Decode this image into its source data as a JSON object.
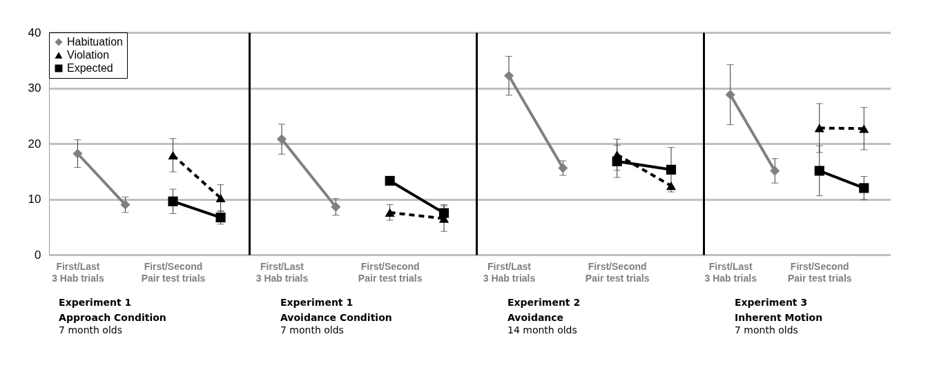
{
  "chart_data": [
    {
      "type": "line",
      "title": "Experiment 1\nApproach Condition",
      "subtitle": "7 month olds",
      "categories": [
        "First/Last\n3 Hab trials",
        null,
        "First/Second\nPair test trials",
        null
      ],
      "ylim": [
        0,
        40
      ],
      "yticks": [
        0,
        10,
        20,
        30,
        40
      ],
      "grid": "y",
      "legend": "top left",
      "series": [
        {
          "name": "Habituation",
          "color": "#808080",
          "marker": "diamond",
          "line_style": "solid",
          "values": [
            18.2,
            9.0,
            null,
            null
          ],
          "errors": [
            2.5,
            1.4,
            null,
            null
          ]
        },
        {
          "name": "Violation",
          "color": "#000000",
          "marker": "triangle",
          "line_style": "dashed",
          "values": [
            null,
            null,
            17.9,
            10.2
          ],
          "errors": [
            null,
            null,
            3.0,
            2.4
          ]
        },
        {
          "name": "Expected",
          "color": "#000000",
          "marker": "square",
          "line_style": "solid",
          "values": [
            null,
            null,
            9.6,
            6.7
          ],
          "errors": [
            null,
            null,
            2.2,
            1.2
          ]
        }
      ]
    },
    {
      "type": "line",
      "title": "Experiment 1\nAvoidance Condition",
      "subtitle": "7 month olds",
      "categories": [
        "First/Last\n3 Hab trials",
        null,
        "First/Second\nPair test trials",
        null
      ],
      "ylim": [
        0,
        40
      ],
      "yticks": [
        0,
        10,
        20,
        30,
        40
      ],
      "grid": "y",
      "tick_labels": "x",
      "series": [
        {
          "color": "#808080",
          "marker": "diamond",
          "line_style": "solid",
          "values": [
            20.8,
            8.6,
            null,
            null
          ],
          "errors": [
            2.7,
            1.5,
            null,
            null
          ]
        },
        {
          "color": "#000000",
          "marker": "triangle",
          "line_style": "dashed",
          "values": [
            null,
            null,
            7.6,
            6.5
          ],
          "errors": [
            null,
            null,
            1.4,
            2.3
          ]
        },
        {
          "color": "#000000",
          "marker": "square",
          "line_style": "solid",
          "values": [
            null,
            null,
            13.3,
            7.5
          ],
          "errors": [
            null,
            null,
            null,
            1.5
          ]
        }
      ]
    },
    {
      "type": "line",
      "title": "Experiment 2\nAvoidance",
      "subtitle": "14 month olds",
      "categories": [
        "First/Last\n3 Hab trials",
        null,
        "First/Second\nPair test trials",
        null
      ],
      "ylim": [
        0,
        40
      ],
      "yticks": [
        0,
        10,
        20,
        30,
        40
      ],
      "grid": "y",
      "tick_labels": "x",
      "series": [
        {
          "color": "#808080",
          "marker": "diamond",
          "line_style": "solid",
          "values": [
            32.2,
            15.6,
            null,
            null
          ],
          "errors": [
            3.5,
            1.3,
            null,
            null
          ]
        },
        {
          "color": "#000000",
          "marker": "triangle",
          "line_style": "dashed",
          "values": [
            null,
            null,
            18.0,
            12.4
          ],
          "errors": [
            null,
            null,
            2.8,
            null
          ]
        },
        {
          "color": "#000000",
          "marker": "square",
          "line_style": "solid",
          "values": [
            null,
            null,
            16.8,
            15.3
          ],
          "errors": [
            null,
            null,
            2.9,
            4.0
          ]
        }
      ]
    },
    {
      "type": "line",
      "title": "Experiment 3\nInherent Motion",
      "subtitle": "7 month olds",
      "categories": [
        "First/Last\n3 Hab trials",
        null,
        "First/Second\nPair test trials",
        null
      ],
      "ylim": [
        0,
        40
      ],
      "yticks": [
        0,
        10,
        20,
        30,
        40
      ],
      "grid": "y",
      "tick_labels": "x",
      "series": [
        {
          "color": "#808080",
          "marker": "diamond",
          "line_style": "solid",
          "values": [
            28.8,
            15.1,
            null,
            null
          ],
          "errors": [
            5.4,
            2.2,
            null,
            null
          ]
        },
        {
          "color": "#000000",
          "marker": "triangle",
          "line_style": "dashed",
          "values": [
            null,
            null,
            22.8,
            22.7
          ],
          "errors": [
            null,
            null,
            4.4,
            3.8
          ]
        },
        {
          "color": "#000000",
          "marker": "square",
          "line_style": "solid",
          "values": [
            null,
            null,
            15.1,
            12.0
          ],
          "errors": [
            null,
            null,
            4.5,
            2.1
          ]
        }
      ]
    }
  ]
}
